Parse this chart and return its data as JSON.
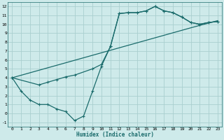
{
  "xlabel": "Humidex (Indice chaleur)",
  "bg_color": "#ceeaea",
  "grid_color": "#aacfcf",
  "line_color": "#1a6b6b",
  "xlim": [
    -0.5,
    23.5
  ],
  "ylim": [
    -1.5,
    12.5
  ],
  "xticks": [
    0,
    1,
    2,
    3,
    4,
    5,
    6,
    7,
    8,
    9,
    10,
    11,
    12,
    13,
    14,
    15,
    16,
    17,
    18,
    19,
    20,
    21,
    22,
    23
  ],
  "yticks": [
    -1,
    0,
    1,
    2,
    3,
    4,
    5,
    6,
    7,
    8,
    9,
    10,
    11,
    12
  ],
  "line1_x": [
    0,
    1,
    2,
    3,
    4,
    5,
    6,
    7,
    8,
    9,
    10,
    11,
    12,
    13,
    14,
    15,
    16,
    17,
    18,
    19,
    20,
    21,
    22,
    23
  ],
  "line1_y": [
    4,
    2.5,
    1.5,
    1.0,
    1.0,
    0.5,
    0.2,
    -0.8,
    -0.3,
    2.5,
    5.3,
    7.5,
    11.2,
    11.3,
    11.3,
    11.5,
    12.0,
    11.5,
    11.3,
    10.8,
    10.2,
    10.0,
    10.2,
    10.3
  ],
  "line2_x": [
    0,
    3,
    4,
    5,
    6,
    7,
    9,
    10,
    11,
    12,
    13,
    14,
    15,
    16,
    17,
    18,
    19,
    20,
    21,
    22,
    23
  ],
  "line2_y": [
    4,
    3.2,
    3.5,
    3.8,
    4.1,
    4.3,
    5.0,
    5.5,
    7.5,
    11.2,
    11.3,
    11.3,
    11.5,
    12.0,
    11.5,
    11.3,
    10.8,
    10.2,
    10.0,
    10.2,
    10.3
  ],
  "line3_x": [
    0,
    5,
    10,
    15,
    20,
    23
  ],
  "line3_y": [
    4,
    5.4,
    6.8,
    8.2,
    9.6,
    10.4
  ]
}
